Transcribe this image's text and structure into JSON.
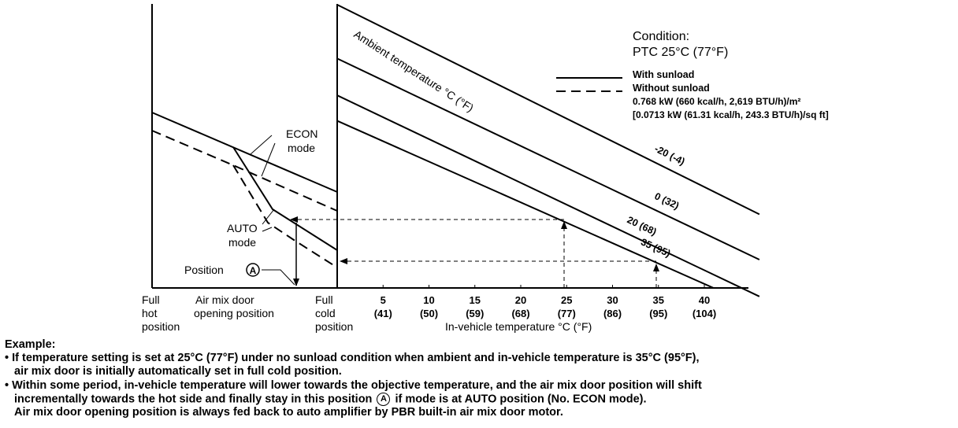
{
  "chart_data": {
    "type": "line",
    "condition": {
      "title": "Condition:",
      "ptc": "PTC 25°C (77°F)",
      "legend_with": "With sunload",
      "legend_without": "Without sunload",
      "sunload_1": "0.768 kW (660 kcal/h, 2,619 BTU/h)/m²",
      "sunload_2": "[0.0713 kW (61.31 kcal/h, 243.3 BTU/h)/sq ft]"
    },
    "ambient_label": "Ambient temperature °C (°F)",
    "xlabel": "In-vehicle temperature °C (°F)",
    "x_ticks": [
      {
        "c": "5",
        "f": "(41)"
      },
      {
        "c": "10",
        "f": "(50)"
      },
      {
        "c": "15",
        "f": "(59)"
      },
      {
        "c": "20",
        "f": "(68)"
      },
      {
        "c": "25",
        "f": "(77)"
      },
      {
        "c": "30",
        "f": "(86)"
      },
      {
        "c": "35",
        "f": "(95)"
      },
      {
        "c": "40",
        "f": "(104)"
      }
    ],
    "left_axis": {
      "full_hot": [
        "Full",
        "hot",
        "position"
      ],
      "door": [
        "Air mix door",
        "opening position"
      ],
      "full_cold": [
        "Full",
        "cold",
        "position"
      ]
    },
    "series": [
      {
        "name": "-20 (-4)",
        "x": [
          0,
          46
        ],
        "y": [
          100,
          26
        ]
      },
      {
        "name": "0 (32)",
        "x": [
          0,
          46
        ],
        "y": [
          81,
          10
        ]
      },
      {
        "name": "20 (68)",
        "x": [
          0,
          46
        ],
        "y": [
          68,
          -3
        ]
      },
      {
        "name": "35 (95)",
        "x": [
          0,
          41
        ],
        "y": [
          59,
          0
        ]
      }
    ],
    "annotations": {
      "econ": [
        "ECON",
        "mode"
      ],
      "auto": [
        "AUTO",
        "mode"
      ],
      "position": "Position",
      "position_marker": "A",
      "example_points": [
        {
          "x": 25,
          "series": "20 (68)"
        },
        {
          "x": 35,
          "series": "35 (95)"
        }
      ]
    }
  },
  "notes": {
    "example_title": "Example:",
    "bullet1_line1": "• If temperature setting is set at 25°C (77°F) under no sunload condition when ambient and in-vehicle temperature is 35°C (95°F),",
    "bullet1_line2": "air mix door is initially automatically set in full cold position.",
    "bullet2_line1a": "• Within some period, in-vehicle temperature will lower towards the objective temperature, and the air mix door position will shift",
    "bullet2_line2a": "incrementally towards the hot side and finally stay in this position",
    "bullet2_marker": "A",
    "bullet2_line2b": "if mode is at AUTO position (No. ECON mode).",
    "line3": "Air mix door opening position is always fed back to auto amplifier by PBR built-in air mix door motor."
  }
}
